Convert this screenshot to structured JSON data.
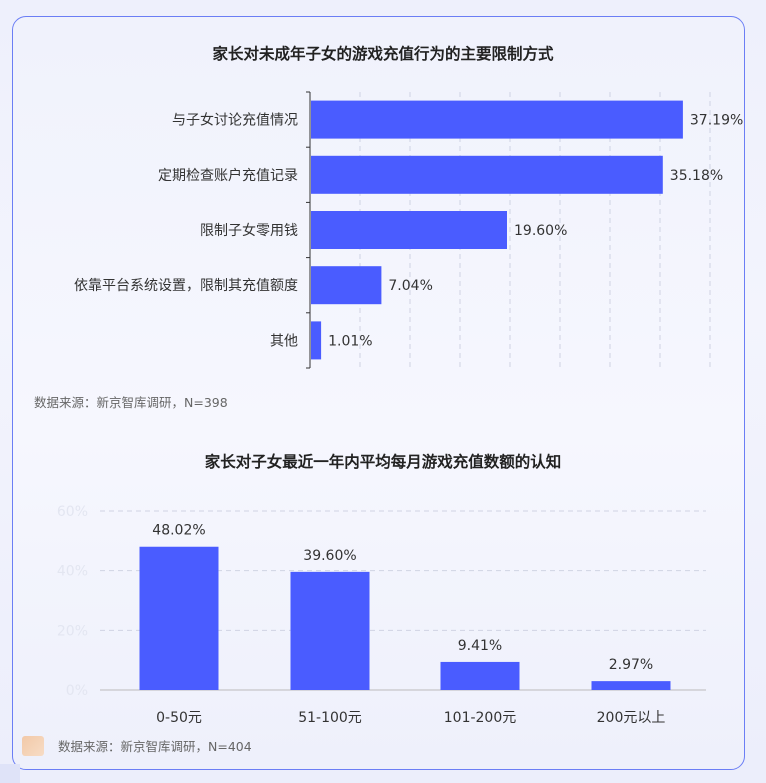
{
  "chart_data": [
    {
      "type": "bar",
      "orientation": "horizontal",
      "title": "家长对未成年子女的游戏充值行为的主要限制方式",
      "categories": [
        "与子女讨论充值情况",
        "定期检查账户充值记录",
        "限制子女零用钱",
        "依靠平台系统设置，限制其充值额度",
        "其他"
      ],
      "values": [
        37.19,
        35.18,
        19.6,
        7.04,
        1.01
      ],
      "value_labels": [
        "37.19%",
        "35.18%",
        "19.60%",
        "7.04%",
        "1.01%"
      ],
      "xlim": [
        0,
        40
      ],
      "grid": "vertical dashed",
      "source": "数据来源：新京智库调研，N=398"
    },
    {
      "type": "bar",
      "orientation": "vertical",
      "title": "家长对子女最近一年内平均每月游戏充值数额的认知",
      "categories": [
        "0-50元",
        "51-100元",
        "101-200元",
        "200元以上"
      ],
      "values": [
        48.02,
        39.6,
        9.41,
        2.97
      ],
      "value_labels": [
        "48.02%",
        "39.60%",
        "9.41%",
        "2.97%"
      ],
      "yticks": [
        "0%",
        "20%",
        "40%",
        "60%"
      ],
      "ylim": [
        0,
        60
      ],
      "grid": "horizontal dashed",
      "source": "数据来源：新京智库调研，N=404"
    }
  ],
  "colors": {
    "bar": "#4a5cff",
    "card_border": "#6b7ef5"
  }
}
